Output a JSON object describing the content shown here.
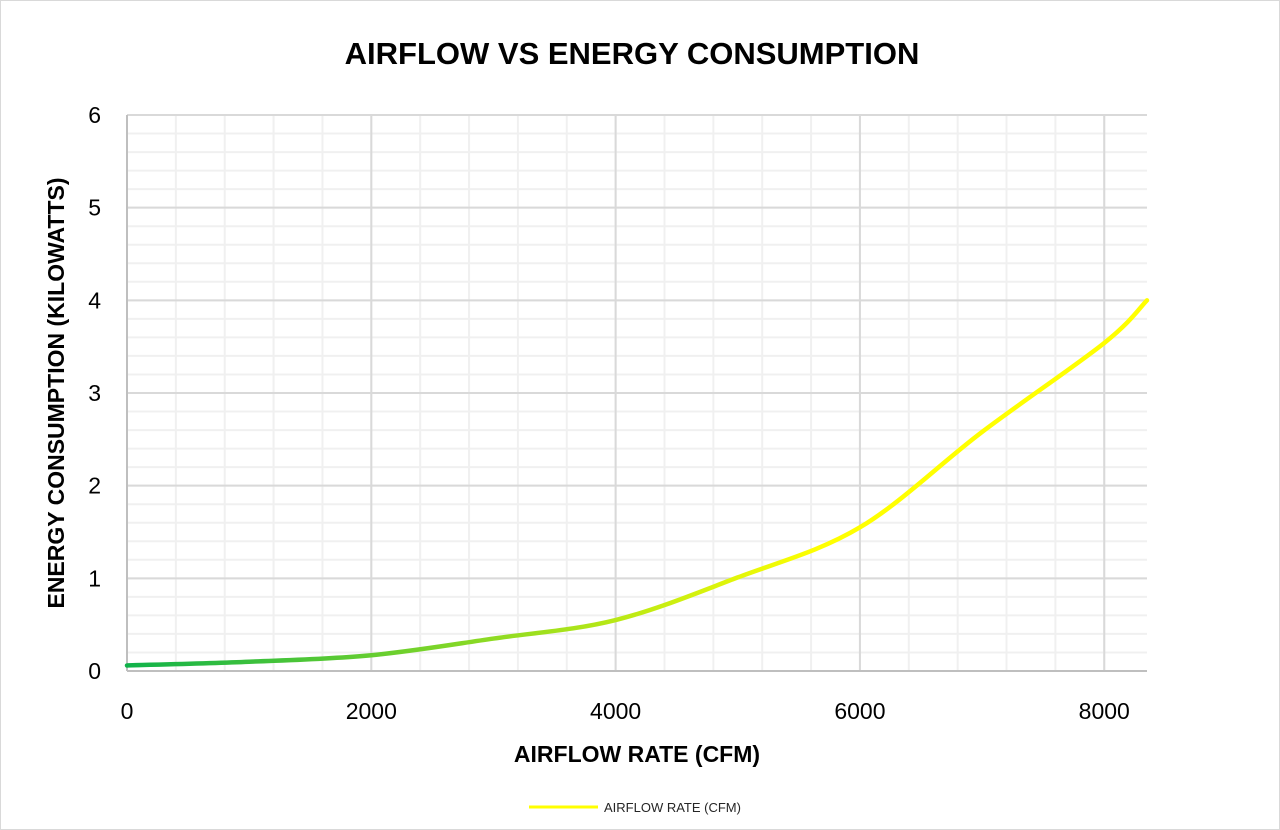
{
  "chart_data": {
    "type": "line",
    "title": "AIRFLOW VS ENERGY CONSUMPTION",
    "xlabel": "AIRFLOW RATE (CFM)",
    "ylabel": "ENERGY CONSUMPTION (KILOWATTS)",
    "xlim": [
      0,
      8350
    ],
    "ylim": [
      0,
      6
    ],
    "xticks": [
      0,
      2000,
      4000,
      6000,
      8000
    ],
    "yticks": [
      0,
      1,
      2,
      3,
      4,
      5,
      6
    ],
    "x_minor_step": 400,
    "y_minor_step": 0.2,
    "grid": true,
    "legend_position": "bottom",
    "series": [
      {
        "name": "AIRFLOW RATE (CFM)",
        "x": [
          0,
          1000,
          2000,
          3000,
          4000,
          5000,
          6000,
          7000,
          8000,
          8350
        ],
        "y": [
          0.06,
          0.1,
          0.17,
          0.35,
          0.55,
          1.01,
          1.55,
          2.58,
          3.54,
          4.0
        ],
        "color_start": "#10b24a",
        "color_end": "#ffff00"
      }
    ]
  }
}
